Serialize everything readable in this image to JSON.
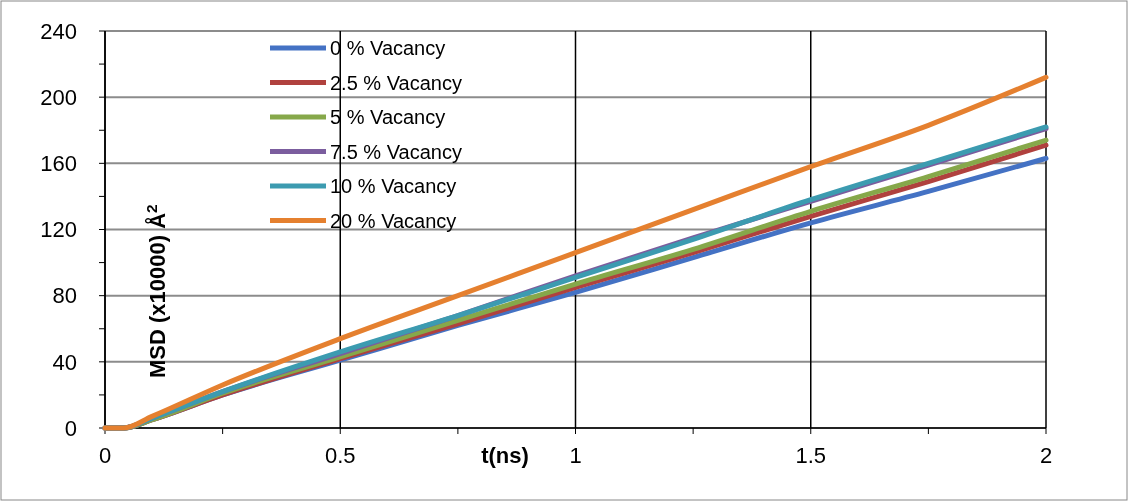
{
  "chart_data": {
    "type": "line",
    "xlabel": "t(ns)",
    "ylabel": "MSD (x10000) Å$^{2}$",
    "x": [
      0,
      0.04,
      0.1,
      0.25,
      0.5,
      0.75,
      1,
      1.25,
      1.5,
      1.75,
      2
    ],
    "series": [
      {
        "name": "0 % Vacancy",
        "color": "#4472c4",
        "values": [
          0,
          0,
          5,
          20,
          41,
          62,
          82,
          103,
          124,
          143,
          163
        ]
      },
      {
        "name": "2.5 % Vacancy",
        "color": "#b0413e",
        "values": [
          0,
          0,
          5,
          20,
          42,
          63,
          85,
          106,
          128,
          149,
          171
        ]
      },
      {
        "name": "5 % Vacancy",
        "color": "#86a84a",
        "values": [
          0,
          0,
          5,
          21,
          43,
          65,
          87,
          108,
          131,
          152,
          174
        ]
      },
      {
        "name": "7.5 % Vacancy",
        "color": "#7b5d9e",
        "values": [
          0,
          0,
          6,
          22,
          45,
          68,
          92,
          115,
          137,
          159,
          181
        ]
      },
      {
        "name": "10 % Vacancy",
        "color": "#3c9bb0",
        "values": [
          0,
          0,
          6,
          22,
          46,
          68,
          91,
          114,
          138,
          160,
          182
        ]
      },
      {
        "name": "20 % Vacancy",
        "color": "#e5802f",
        "values": [
          0,
          0,
          7,
          26,
          54,
          80,
          106,
          132,
          158,
          183,
          212
        ]
      }
    ],
    "xlim": [
      0,
      2
    ],
    "ylim": [
      0,
      240
    ],
    "xticks": [
      0,
      {
        "value": 0.25,
        "label": null
      },
      0.5,
      {
        "value": 0.75,
        "label": null
      },
      1,
      {
        "value": 1.25,
        "label": null
      },
      1.5,
      {
        "value": 1.75,
        "label": null
      },
      2
    ],
    "yticks": [
      0,
      {
        "value": 20,
        "label": null
      },
      40,
      {
        "value": 60,
        "label": null
      },
      80,
      {
        "value": 100,
        "label": null
      },
      120,
      {
        "value": 140,
        "label": null
      },
      160,
      {
        "value": 180,
        "label": null
      },
      200,
      {
        "value": 220,
        "label": null
      },
      240
    ],
    "grid": true,
    "legend": "top left",
    "line_style": "solid",
    "marker": "none"
  }
}
